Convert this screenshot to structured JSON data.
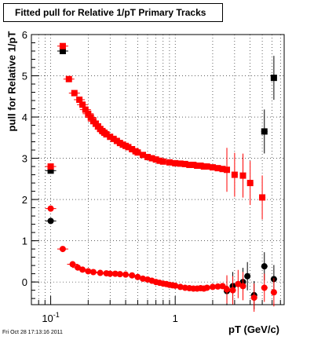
{
  "chart_data": {
    "type": "scatter",
    "title": "Fitted pull for Relative 1/pT  Primary Tracks",
    "xlabel": "pT (GeV/c)",
    "ylabel": "pull for Relative 1/pT",
    "x_scale": "log",
    "xlim": [
      0.07,
      7.5
    ],
    "ylim": [
      -0.55,
      6.0
    ],
    "y_ticks": [
      0,
      1,
      2,
      3,
      4,
      5,
      6
    ],
    "x_ticks": [
      {
        "value": 0.1,
        "base": "10",
        "exp": "-1"
      },
      {
        "value": 1,
        "label": "1"
      }
    ],
    "grid": true,
    "colors": {
      "black_series": "#000000",
      "red_series": "#ff0000"
    },
    "series": [
      {
        "color": "black",
        "marker": "square",
        "x": [
          0.1,
          0.125,
          5.2,
          6.2
        ],
        "y": [
          2.7,
          5.6,
          3.65,
          4.95
        ]
      },
      {
        "color": "red",
        "marker": "square",
        "x": [
          0.1,
          0.125,
          0.14,
          0.155,
          0.17,
          0.18,
          0.19,
          0.2,
          0.21,
          0.22,
          0.23,
          0.24,
          0.25,
          0.26,
          0.27,
          0.28,
          0.3,
          0.32,
          0.34,
          0.36,
          0.38,
          0.4,
          0.42,
          0.45,
          0.48,
          0.5,
          0.55,
          0.6,
          0.65,
          0.7,
          0.75,
          0.8,
          0.9,
          1.0,
          1.1,
          1.2,
          1.3,
          1.4,
          1.5,
          1.6,
          1.7,
          1.8,
          2.0,
          2.2,
          2.4,
          2.6,
          3.0,
          3.5,
          4.0,
          5.0
        ],
        "y": [
          2.8,
          5.72,
          4.92,
          4.58,
          4.42,
          4.3,
          4.18,
          4.08,
          3.99,
          3.9,
          3.84,
          3.77,
          3.71,
          3.66,
          3.62,
          3.58,
          3.52,
          3.47,
          3.42,
          3.37,
          3.33,
          3.3,
          3.27,
          3.22,
          3.17,
          3.14,
          3.08,
          3.03,
          3.0,
          2.97,
          2.94,
          2.92,
          2.9,
          2.88,
          2.87,
          2.86,
          2.84,
          2.84,
          2.82,
          2.82,
          2.8,
          2.8,
          2.78,
          2.76,
          2.74,
          2.72,
          2.6,
          2.58,
          2.4,
          2.05
        ]
      },
      {
        "color": "black",
        "marker": "circle",
        "x": [
          0.1,
          2.6,
          2.9,
          3.5,
          3.8,
          4.3,
          5.2,
          6.2
        ],
        "y": [
          1.48,
          -0.22,
          -0.1,
          0.0,
          0.14,
          -0.32,
          0.38,
          0.07
        ]
      },
      {
        "color": "red",
        "marker": "circle",
        "x": [
          0.1,
          0.125,
          0.15,
          0.165,
          0.18,
          0.2,
          0.22,
          0.25,
          0.28,
          0.3,
          0.33,
          0.36,
          0.4,
          0.45,
          0.5,
          0.55,
          0.6,
          0.65,
          0.7,
          0.75,
          0.8,
          0.85,
          0.9,
          0.95,
          1.0,
          1.1,
          1.2,
          1.3,
          1.4,
          1.5,
          1.6,
          1.7,
          1.8,
          2.0,
          2.2,
          2.4,
          2.6,
          2.9,
          3.2,
          3.5,
          4.3,
          5.2,
          6.2
        ],
        "y": [
          1.78,
          0.8,
          0.43,
          0.35,
          0.3,
          0.26,
          0.24,
          0.22,
          0.21,
          0.2,
          0.2,
          0.19,
          0.18,
          0.16,
          0.12,
          0.08,
          0.06,
          0.03,
          0.0,
          -0.02,
          -0.04,
          -0.05,
          -0.07,
          -0.08,
          -0.09,
          -0.12,
          -0.14,
          -0.15,
          -0.16,
          -0.16,
          -0.15,
          -0.16,
          -0.14,
          -0.12,
          -0.11,
          -0.1,
          -0.18,
          -0.2,
          -0.05,
          -0.1,
          -0.38,
          -0.14,
          -0.25
        ]
      }
    ]
  },
  "footer": {
    "timestamp": "Fri Oct 28 17:13:16 2011"
  }
}
